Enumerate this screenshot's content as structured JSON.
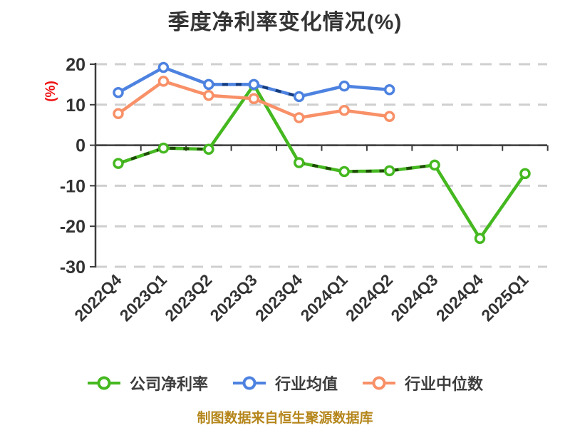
{
  "title": "季度净利率变化情况(%)",
  "y_axis_unit": "(%)",
  "footer": {
    "text": "制图数据来自恒生聚源数据库"
  },
  "colors": {
    "background": "#ffffff",
    "title_text": "#333333",
    "axis": "#3c3c3c",
    "grid": "#cfcfcf",
    "tick_text": "#333333",
    "legend_text": "#3d3d3d",
    "y_unit_text": "#ee1111",
    "footer_text": "#b5861b",
    "company_green": "#45b820",
    "industry_blue": "#4d82e0",
    "median_orange": "#f89068"
  },
  "legend": {
    "items": [
      {
        "label": "公司净利率"
      },
      {
        "label": "行业均值"
      },
      {
        "label": "行业中位数"
      }
    ]
  },
  "chart_data": {
    "type": "line",
    "title": "季度净利率变化情况(%)",
    "xlabel": "",
    "ylabel": "(%)",
    "ylim": [
      -30,
      20
    ],
    "yticks": [
      20,
      10,
      0,
      -10,
      -20,
      -30
    ],
    "grid": "horizontal-dashed",
    "legend_position": "bottom",
    "categories": [
      "2022Q4",
      "2023Q1",
      "2023Q2",
      "2023Q3",
      "2023Q4",
      "2024Q1",
      "2024Q2",
      "2024Q3",
      "2024Q4",
      "2025Q1"
    ],
    "series": [
      {
        "name": "公司净利率",
        "color": "#45b820",
        "overlay_color": "#1e4a05",
        "values": [
          -4.5,
          -0.7,
          -1.0,
          14.9,
          -4.3,
          -6.5,
          -6.3,
          -4.9,
          -23.0,
          -7.0
        ],
        "dash_overlay_segments": [
          [
            0,
            2
          ],
          [
            4,
            7
          ]
        ]
      },
      {
        "name": "行业均值",
        "color": "#4d82e0",
        "overlay_color": "#163c7d",
        "values": [
          13.0,
          19.2,
          15.0,
          15.0,
          12.0,
          14.6,
          13.7
        ],
        "dash_overlay_segments": [
          [
            2,
            4
          ]
        ]
      },
      {
        "name": "行业中位数",
        "color": "#f89068",
        "overlay_color": "",
        "values": [
          7.8,
          15.8,
          12.3,
          11.5,
          6.8,
          8.6,
          7.1
        ],
        "dash_overlay_segments": []
      }
    ]
  }
}
